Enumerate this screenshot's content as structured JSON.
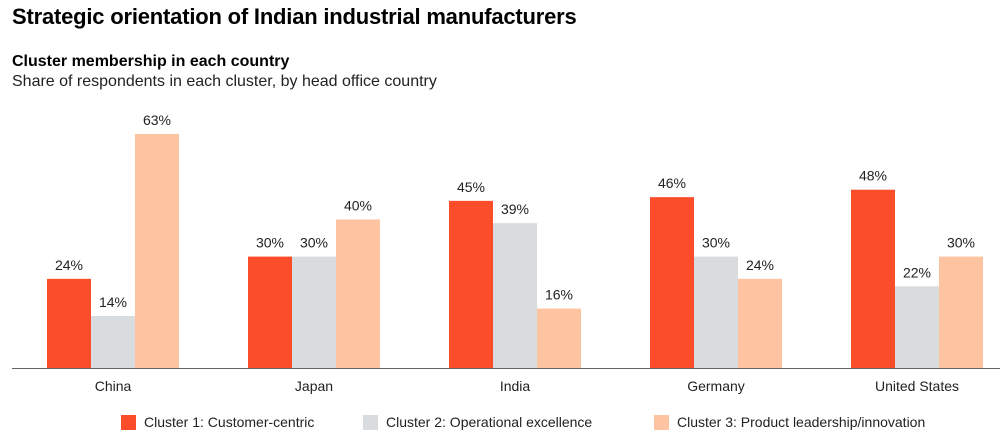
{
  "title": "Strategic orientation of Indian industrial manufacturers",
  "subtitle": "Cluster membership in each country",
  "subsubtitle": "Share of respondents in each cluster, by head office country",
  "colors": {
    "cluster1": "#fc4d2b",
    "cluster2": "#d9dcdf",
    "cluster3": "#fec4a2",
    "axis": "#666666"
  },
  "legend": [
    {
      "label": "Cluster 1: Customer-centric",
      "color": "#fc4d2b"
    },
    {
      "label": "Cluster 2: Operational excellence",
      "color": "#d9dcdf"
    },
    {
      "label": "Cluster 3: Product leadership/innovation",
      "color": "#fec4a2"
    }
  ],
  "chart_data": {
    "type": "bar",
    "title": "Strategic orientation of Indian industrial manufacturers",
    "subtitle": "Cluster membership in each country",
    "categories": [
      "China",
      "Japan",
      "India",
      "Germany",
      "United States"
    ],
    "series": [
      {
        "name": "Cluster 1: Customer-centric",
        "values": [
          24,
          30,
          45,
          46,
          48
        ],
        "labels": [
          "24%",
          "30%",
          "45%",
          "46%",
          "48%"
        ]
      },
      {
        "name": "Cluster 2: Operational excellence",
        "values": [
          14,
          30,
          39,
          30,
          22
        ],
        "labels": [
          "14%",
          "30%",
          "39%",
          "30%",
          "22%"
        ]
      },
      {
        "name": "Cluster 3: Product leadership/innovation",
        "values": [
          63,
          40,
          16,
          24,
          30
        ],
        "labels": [
          "63%",
          "40%",
          "16%",
          "24%",
          "30%"
        ]
      }
    ],
    "ylim": [
      0,
      63
    ],
    "xlabel": "",
    "ylabel": "",
    "grid": false,
    "legend_position": "bottom"
  }
}
